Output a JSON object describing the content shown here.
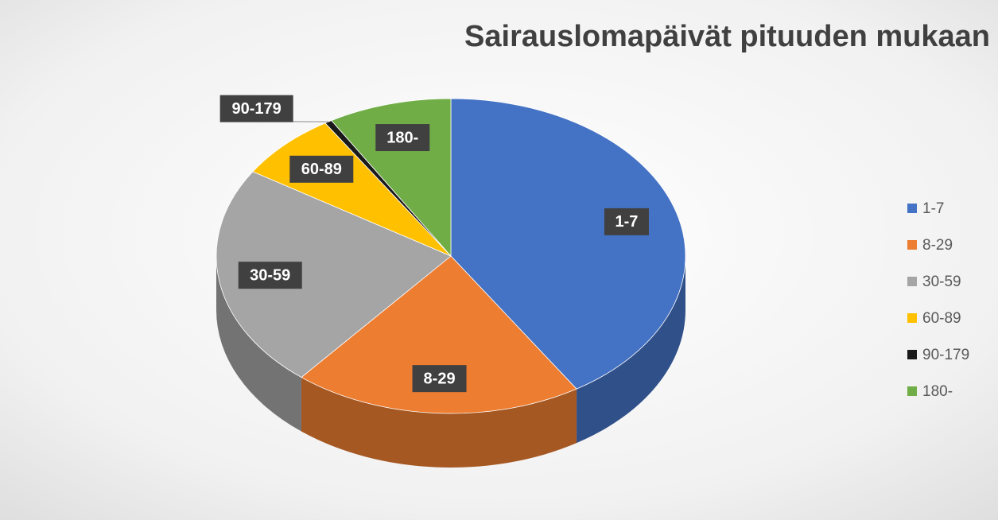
{
  "chart_data": {
    "type": "pie",
    "title": "Sairauslomapäivät pituuden mukaan",
    "categories": [
      "1-7",
      "8-29",
      "30-59",
      "60-89",
      "90-179",
      "180-"
    ],
    "values": [
      41,
      20,
      23,
      7,
      0.5,
      8.5
    ],
    "colors": [
      "#4472c4",
      "#ed7d31",
      "#a5a5a5",
      "#ffc000",
      "#1a1a1a",
      "#70ad47"
    ],
    "legend": "right"
  }
}
